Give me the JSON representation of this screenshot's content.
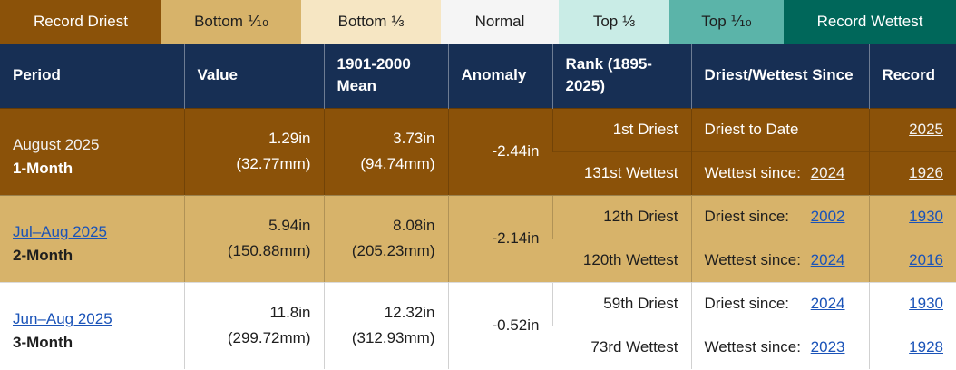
{
  "legend": [
    {
      "label": "Record Driest",
      "bg": "#8b5209",
      "fg": "#ffffff",
      "width": 178
    },
    {
      "label": "Bottom ⅒",
      "bg": "#d7b36a",
      "fg": "#1e1e1e",
      "width": 154
    },
    {
      "label": "Bottom ⅓",
      "bg": "#f6e6c3",
      "fg": "#1e1e1e",
      "width": 154
    },
    {
      "label": "Normal",
      "bg": "#f5f5f5",
      "fg": "#1e1e1e",
      "width": 130
    },
    {
      "label": "Top ⅓",
      "bg": "#c9ece6",
      "fg": "#1e1e1e",
      "width": 122
    },
    {
      "label": "Top ⅒",
      "bg": "#5bb4a9",
      "fg": "#1e1e1e",
      "width": 126
    },
    {
      "label": "Record Wettest",
      "bg": "#00675a",
      "fg": "#ffffff",
      "width": 190
    }
  ],
  "headers": {
    "period": "Period",
    "value": "Value",
    "mean": "1901-2000 Mean",
    "anomaly": "Anomaly",
    "rank": "Rank (1895-2025)",
    "since": "Driest/Wettest Since",
    "record": "Record"
  },
  "rows": [
    {
      "period_link": "August 2025",
      "period_name": "1-Month",
      "value_in": "1.29in",
      "value_mm": "(32.77mm)",
      "mean_in": "3.73in",
      "mean_mm": "(94.74mm)",
      "anomaly": "-2.44in",
      "driest_rank": "1st Driest",
      "driest_since_label": "Driest to Date",
      "driest_since_year": "",
      "driest_record": "2025",
      "wettest_rank": "131st Wettest",
      "wettest_since_label": "Wettest since:",
      "wettest_since_year": "2024",
      "wettest_record": "1926"
    },
    {
      "period_link": "Jul–Aug 2025",
      "period_name": "2-Month",
      "value_in": "5.94in",
      "value_mm": "(150.88mm)",
      "mean_in": "8.08in",
      "mean_mm": "(205.23mm)",
      "anomaly": "-2.14in",
      "driest_rank": "12th Driest",
      "driest_since_label": "Driest since:",
      "driest_since_year": "2002",
      "driest_record": "1930",
      "wettest_rank": "120th Wettest",
      "wettest_since_label": "Wettest since:",
      "wettest_since_year": "2024",
      "wettest_record": "2016"
    },
    {
      "period_link": "Jun–Aug 2025",
      "period_name": "3-Month",
      "value_in": "11.8in",
      "value_mm": "(299.72mm)",
      "mean_in": "12.32in",
      "mean_mm": "(312.93mm)",
      "anomaly": "-0.52in",
      "driest_rank": "59th Driest",
      "driest_since_label": "Driest since:",
      "driest_since_year": "2024",
      "driest_record": "1930",
      "wettest_rank": "73rd Wettest",
      "wettest_since_label": "Wettest since:",
      "wettest_since_year": "2023",
      "wettest_record": "1928"
    }
  ]
}
